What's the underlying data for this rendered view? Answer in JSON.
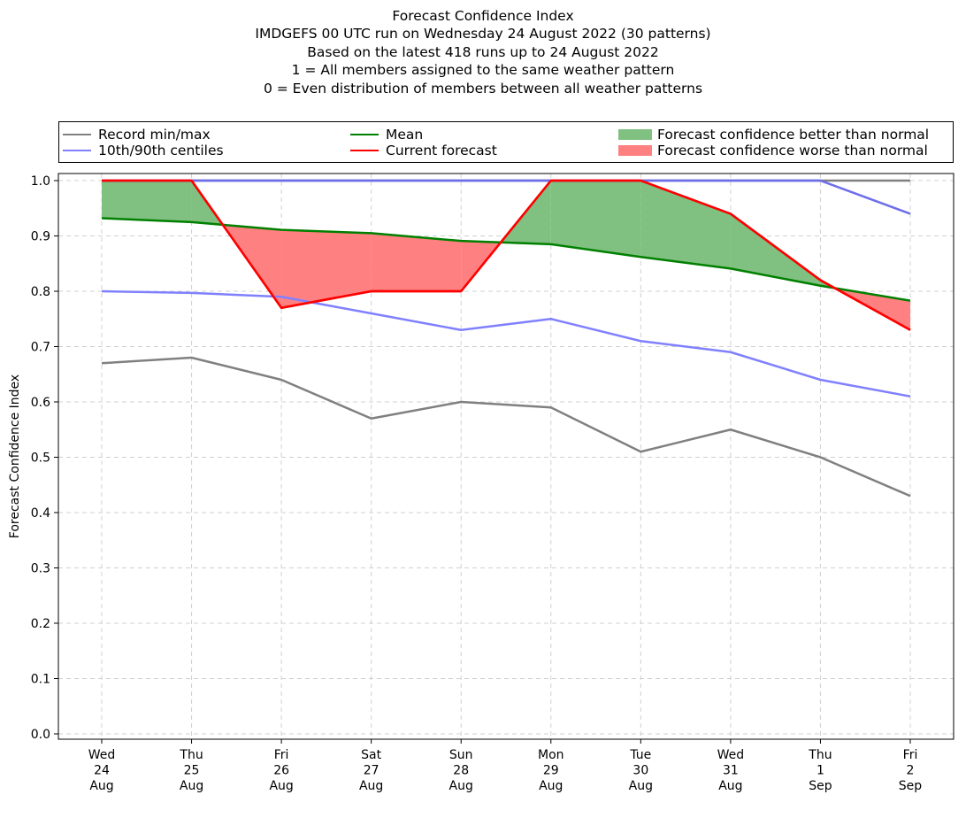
{
  "chart_data": {
    "type": "line",
    "title_lines": [
      "Forecast Confidence Index",
      "IMDGEFS 00 UTC run on Wednesday 24 August 2022 (30 patterns)",
      "Based on the latest 418 runs up to 24 August 2022",
      "1 = All members assigned to the same weather pattern",
      "0 = Even distribution of members between all weather patterns"
    ],
    "ylabel": "Forecast Confidence Index",
    "xlabel": "",
    "ylim": [
      0.0,
      1.0
    ],
    "yticks": [
      "0.0",
      "0.1",
      "0.2",
      "0.3",
      "0.4",
      "0.5",
      "0.6",
      "0.7",
      "0.8",
      "0.9",
      "1.0"
    ],
    "grid": true,
    "categories": [
      [
        "Wed",
        "24",
        "Aug"
      ],
      [
        "Thu",
        "25",
        "Aug"
      ],
      [
        "Fri",
        "26",
        "Aug"
      ],
      [
        "Sat",
        "27",
        "Aug"
      ],
      [
        "Sun",
        "28",
        "Aug"
      ],
      [
        "Mon",
        "29",
        "Aug"
      ],
      [
        "Tue",
        "30",
        "Aug"
      ],
      [
        "Wed",
        "31",
        "Aug"
      ],
      [
        "Thu",
        "1",
        "Sep"
      ],
      [
        "Fri",
        "2",
        "Sep"
      ]
    ],
    "series": [
      {
        "name": "Record min",
        "legend": "Record min/max",
        "color": "#808080",
        "values": [
          0.67,
          0.68,
          0.64,
          0.57,
          0.6,
          0.59,
          0.51,
          0.55,
          0.5,
          0.43
        ]
      },
      {
        "name": "Record max",
        "color": "#808080",
        "values": [
          1.0,
          1.0,
          1.0,
          1.0,
          1.0,
          1.0,
          1.0,
          1.0,
          1.0,
          1.0
        ]
      },
      {
        "name": "10th centile",
        "legend": "10th/90th centiles",
        "color": "#8080ff",
        "values": [
          0.8,
          0.797,
          0.79,
          0.76,
          0.73,
          0.75,
          0.71,
          0.69,
          0.64,
          0.61
        ]
      },
      {
        "name": "90th centile",
        "color": "#8080ff",
        "values": [
          1.0,
          1.0,
          1.0,
          1.0,
          1.0,
          1.0,
          1.0,
          1.0,
          1.0,
          0.94
        ]
      },
      {
        "name": "Mean",
        "legend": "Mean",
        "color": "#008000",
        "values": [
          0.932,
          0.925,
          0.911,
          0.905,
          0.891,
          0.885,
          0.862,
          0.841,
          0.81,
          0.783
        ]
      },
      {
        "name": "Current forecast",
        "legend": "Current forecast",
        "color": "#ff0000",
        "values": [
          1.0,
          1.0,
          0.77,
          0.8,
          0.8,
          1.0,
          1.0,
          0.94,
          0.82,
          0.73
        ]
      }
    ],
    "fills": [
      {
        "legend": "Forecast confidence better than normal",
        "color": "#80c080"
      },
      {
        "legend": "Forecast confidence worse than normal",
        "color": "#ff8080"
      }
    ],
    "legend_placement": "top, above plot"
  }
}
